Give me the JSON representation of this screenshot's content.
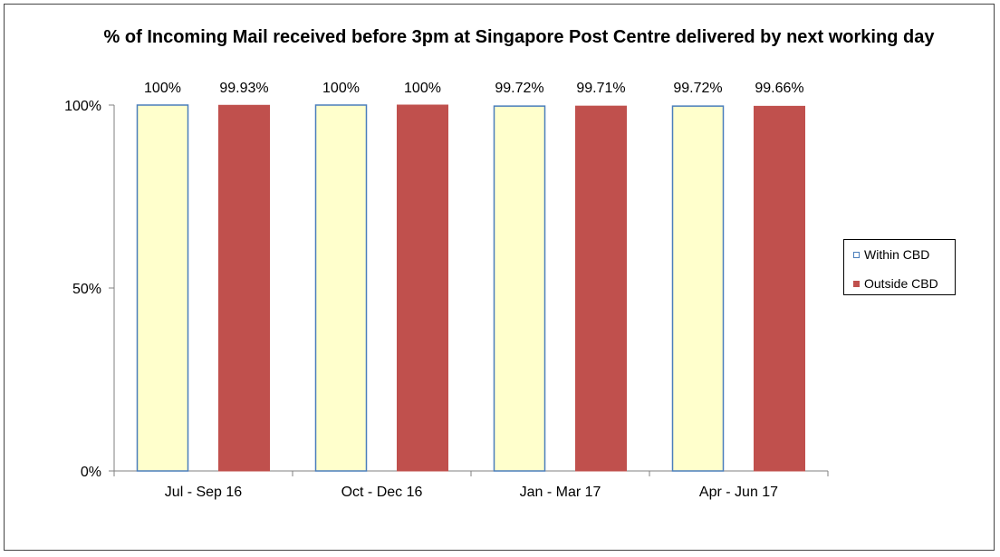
{
  "chart_data": {
    "type": "bar",
    "title": "% of Incoming Mail received before 3pm at Singapore Post Centre delivered by next working day",
    "categories": [
      "Jul - Sep 16",
      "Oct - Dec 16",
      "Jan - Mar 17",
      "Apr - Jun 17"
    ],
    "series": [
      {
        "name": "Within CBD",
        "values": [
          100,
          100,
          99.72,
          99.72
        ],
        "labels": [
          "100%",
          "100%",
          "99.72%",
          "99.72%"
        ],
        "fill": "#ffffcc",
        "stroke": "#4a7ebb"
      },
      {
        "name": "Outside CBD",
        "values": [
          99.93,
          100,
          99.71,
          99.66
        ],
        "labels": [
          "99.93%",
          "100%",
          "99.71%",
          "99.66%"
        ],
        "fill": "#c0504d",
        "stroke": "#c0504d"
      }
    ],
    "ylim": [
      0,
      100
    ],
    "yticks": [
      0,
      50,
      100
    ],
    "ytick_labels": [
      "0%",
      "50%",
      "100%"
    ],
    "xlabel": "",
    "ylabel": "",
    "legend_position": "right",
    "grid": false
  }
}
